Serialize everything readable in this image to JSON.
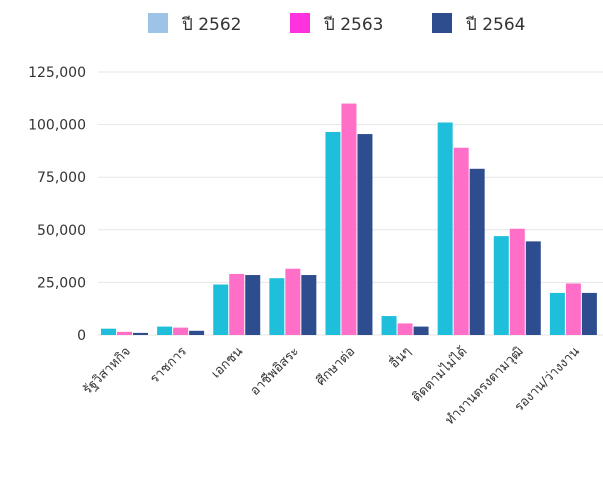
{
  "chart_data": {
    "type": "bar",
    "title": "",
    "xlabel": "",
    "ylabel": "",
    "ylim": [
      0,
      125000
    ],
    "yticks": [
      0,
      25000,
      50000,
      75000,
      100000,
      125000
    ],
    "ytick_labels": [
      "0",
      "25,000",
      "50,000",
      "75,000",
      "100,000",
      "125,000"
    ],
    "grid": true,
    "legend_position": "top",
    "categories": [
      "รัฐวิสาหกิจ",
      "ราชการ",
      "เอกชน",
      "อาชีพอิสระ",
      "ศึกษาต่อ",
      "อื่นๆ",
      "ติดตามไม่ได้",
      "ทำงานตรงตามวุฒิ",
      "รองาน/ว่างงาน"
    ],
    "series": [
      {
        "name": "ปี 2562",
        "legend_color": "#9dc3e6",
        "color": "#1fbfdc",
        "values": [
          3000,
          4000,
          24000,
          27000,
          96500,
          9000,
          101000,
          47000,
          20000
        ]
      },
      {
        "name": "ปี 2563",
        "legend_color": "#ff33dd",
        "color": "#ff6ec7",
        "values": [
          1500,
          3500,
          29000,
          31500,
          110000,
          5500,
          89000,
          50500,
          24500
        ]
      },
      {
        "name": "ปี 2564",
        "legend_color": "#2e4d8f",
        "color": "#2e4d8f",
        "values": [
          1000,
          2000,
          28500,
          28500,
          95500,
          4000,
          79000,
          44500,
          20000
        ]
      }
    ]
  }
}
